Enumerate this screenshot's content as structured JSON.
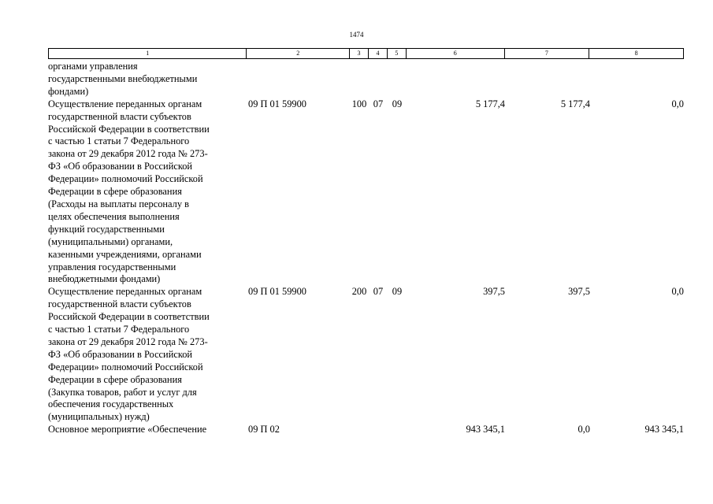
{
  "page_number": "1474",
  "header_cells": [
    "1",
    "2",
    "3",
    "4",
    "5",
    "6",
    "7",
    "8"
  ],
  "rows": [
    {
      "name": "органами управления\nгосударственными внебюджетными\nфондами)",
      "code": "",
      "c3": "",
      "c4": "",
      "c5": "",
      "v6": "",
      "v7": "",
      "v8": ""
    },
    {
      "name": "Осуществление переданных органам\nгосударственной власти субъектов\nРоссийской Федерации в соответствии\nс частью 1 статьи 7 Федерального\nзакона от 29 декабря 2012 года № 273-\nФЗ «Об образовании в Российской\nФедерации» полномочий Российской\nФедерации в сфере образования\n(Расходы на выплаты персоналу в\nцелях обеспечения выполнения\nфункций государственными\n(муниципальными) органами,\nказенными учреждениями, органами\nуправления государственными\nвнебюджетными фондами)",
      "code": "09 П 01 59900",
      "c3": "100",
      "c4": "07",
      "c5": "09",
      "v6": "5 177,4",
      "v7": "5 177,4",
      "v8": "0,0"
    },
    {
      "name": "Осуществление переданных органам\nгосударственной власти субъектов\nРоссийской Федерации в соответствии\nс частью 1 статьи 7 Федерального\nзакона от 29 декабря 2012 года № 273-\nФЗ «Об образовании в Российской\nФедерации» полномочий Российской\nФедерации в сфере образования\n(Закупка товаров, работ и услуг для\nобеспечения государственных\n(муниципальных) нужд)",
      "code": "09 П 01 59900",
      "c3": "200",
      "c4": "07",
      "c5": "09",
      "v6": "397,5",
      "v7": "397,5",
      "v8": "0,0"
    },
    {
      "name": "Основное мероприятие «Обеспечение",
      "code": "09 П 02",
      "c3": "",
      "c4": "",
      "c5": "",
      "v6": "943 345,1",
      "v7": "0,0",
      "v8": "943 345,1"
    }
  ]
}
